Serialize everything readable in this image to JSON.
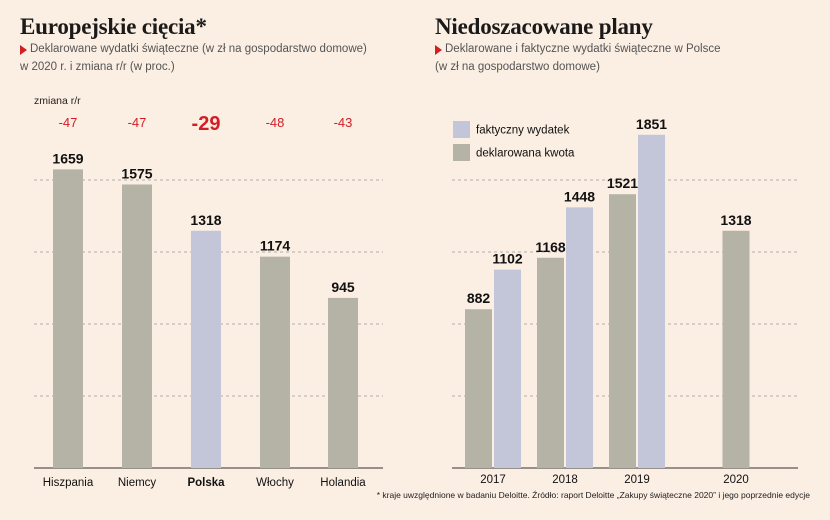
{
  "left": {
    "title": "Europejskie cięcia*",
    "subtitle_line1": "Deklarowane wydatki świąteczne (w zł na gospodarstwo domowe)",
    "subtitle_line2": "w 2020 r. i zmiana r/r (w proc.)",
    "change_label": "zmiana r/r"
  },
  "right": {
    "title": "Niedoszacowane plany",
    "subtitle_line1": "Deklarowane i faktyczne wydatki świąteczne w Polsce",
    "subtitle_line2": "(w zł na gospodarstwo domowe)"
  },
  "footnote": "* kraje uwzględnione w badaniu Deloitte. Źródło: raport Deloitte „Zakupy świąteczne 2020” i jego poprzednie edycje",
  "colors": {
    "background": "#fbeee2",
    "gray_bar": "#b5b3a6",
    "blue_bar": "#c3c6d8",
    "red": "#d31e25",
    "grid": "#9a9a9a"
  },
  "chart_data": [
    {
      "type": "bar",
      "title": "Europejskie cięcia*",
      "categories": [
        "Hiszpania",
        "Niemcy",
        "Polska",
        "Włochy",
        "Holandia"
      ],
      "values": [
        1659,
        1575,
        1318,
        1174,
        945
      ],
      "change_yoy": [
        "-47",
        "-47",
        "-29",
        "-48",
        "-43"
      ],
      "highlight": "Polska",
      "ylim": [
        0,
        2000
      ],
      "grid": true
    },
    {
      "type": "bar",
      "title": "Niedoszacowane plany",
      "categories": [
        "2017",
        "2018",
        "2019",
        "2020"
      ],
      "series": [
        {
          "name": "deklarowana kwota",
          "values": [
            882,
            1168,
            1521,
            1318
          ]
        },
        {
          "name": "faktyczny wydatek",
          "values": [
            1102,
            1448,
            1851,
            null
          ]
        }
      ],
      "legend": "top-left",
      "ylim": [
        0,
        2000
      ],
      "grid": true
    }
  ]
}
